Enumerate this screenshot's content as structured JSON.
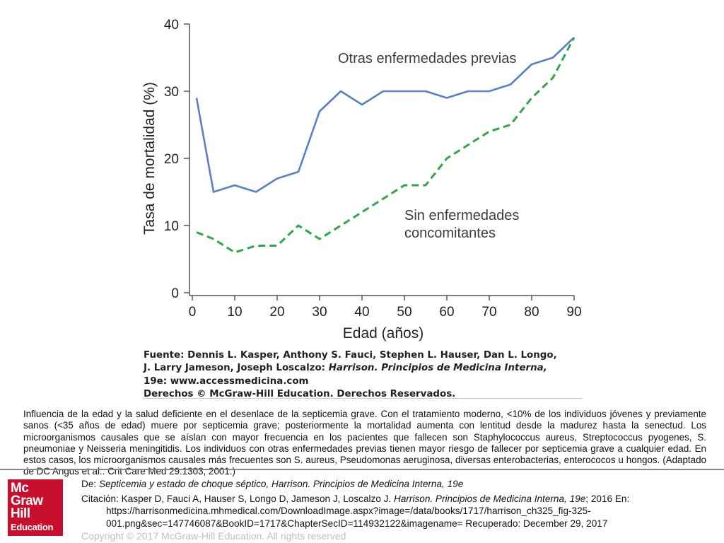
{
  "chart_data": {
    "type": "line",
    "title": "",
    "xlabel": "Edad (años)",
    "ylabel": "Tasa de mortalidad (%)",
    "xlim": [
      0,
      90
    ],
    "ylim": [
      0,
      40
    ],
    "x_ticks": [
      "0",
      "10",
      "20",
      "30",
      "40",
      "50",
      "60",
      "70",
      "80",
      "90"
    ],
    "y_ticks": [
      "0",
      "10",
      "20",
      "30",
      "40"
    ],
    "grid": false,
    "series": [
      {
        "name": "Otras enfermedades previas",
        "color": "#5b7fc4",
        "style": "solid",
        "x": [
          1,
          5,
          10,
          15,
          20,
          25,
          30,
          35,
          40,
          45,
          50,
          55,
          60,
          65,
          70,
          75,
          80,
          85,
          90
        ],
        "y": [
          29,
          15,
          16,
          15,
          17,
          18,
          27,
          30,
          28,
          30,
          30,
          30,
          29,
          30,
          30,
          31,
          34,
          35,
          38
        ]
      },
      {
        "name": "Sin enfermedades concomitantes",
        "color": "#2ea84a",
        "style": "dashed",
        "x": [
          1,
          5,
          10,
          15,
          20,
          25,
          30,
          35,
          40,
          45,
          50,
          55,
          60,
          65,
          70,
          75,
          80,
          85,
          90
        ],
        "y": [
          9,
          8,
          6,
          7,
          7,
          10,
          8,
          10,
          12,
          14,
          16,
          16,
          20,
          22,
          24,
          25,
          29,
          32,
          38
        ]
      }
    ],
    "annotations": [
      {
        "lines": [
          "Otras enfermedades previas"
        ],
        "series": 0
      },
      {
        "lines": [
          "Sin enfermedades",
          "concomitantes"
        ],
        "series": 1
      }
    ]
  },
  "source": {
    "line1": "Fuente: Dennis L. Kasper, Anthony S. Fauci, Stephen L. Hauser, Dan L. Longo,",
    "line2_plain": "J. Larry Jameson, Joseph Loscalzo: ",
    "line2_italic": "Harrison. Principios de Medicina Interna,",
    "line3": "19e: www.accessmedicina.com",
    "line4": "Derechos © McGraw-Hill Education. Derechos Reservados."
  },
  "caption": "Influencia de la edad y la salud deficiente en el desenlace de la septicemia grave. Con el tratamiento moderno, <10% de los individuos jóvenes y previamente sanos (<35 años de edad) muere por septicemia grave; posteriormente la mortalidad aumenta con lentitud desde la madurez hasta la senectud. Los microorganismos causales que se aíslan con mayor frecuencia en los pacientes que fallecen son Staphylococcus aureus, Streptococcus pyogenes, S. pneumoniae y Neisseria meningitidis. Los individuos con otras enfermedades previas tienen mayor riesgo de fallecer por septicemia grave a cualquier edad. En estos casos, los microorganismos causales más frecuentes son S. aureus, Pseudomonas aeruginosa, diversas enterobacterias, enterococos u hongos. (Adaptado de DC Angus et al.: Crit Care Med 29:1303, 2001.)",
  "logo": {
    "line1": "Mc",
    "line2": "Graw",
    "line3": "Hill",
    "line4": "Education"
  },
  "footer": {
    "de_prefix": "De: ",
    "de_italic": "Septicemia y estado de choque séptico, Harrison. Principios de Medicina Interna, 19e",
    "cite_prefix": "Citación: Kasper D, Fauci A, Hauser S, Longo D, Jameson J, Loscalzo J. ",
    "cite_italic": "Harrison. Principios de Medicina Interna, 19e",
    "cite_suffix": "; 2016 En: https://harrisonmedicina.mhmedical.com/DownloadImage.aspx?image=/data/books/1717/harrison_ch325_fig-325-001.png&sec=147746087&BookID=1717&ChapterSecID=114932122&imagename= Recuperado: December 29, 2017",
    "copyright": "Copyright © 2017 McGraw-Hill Education. All rights reserved"
  }
}
